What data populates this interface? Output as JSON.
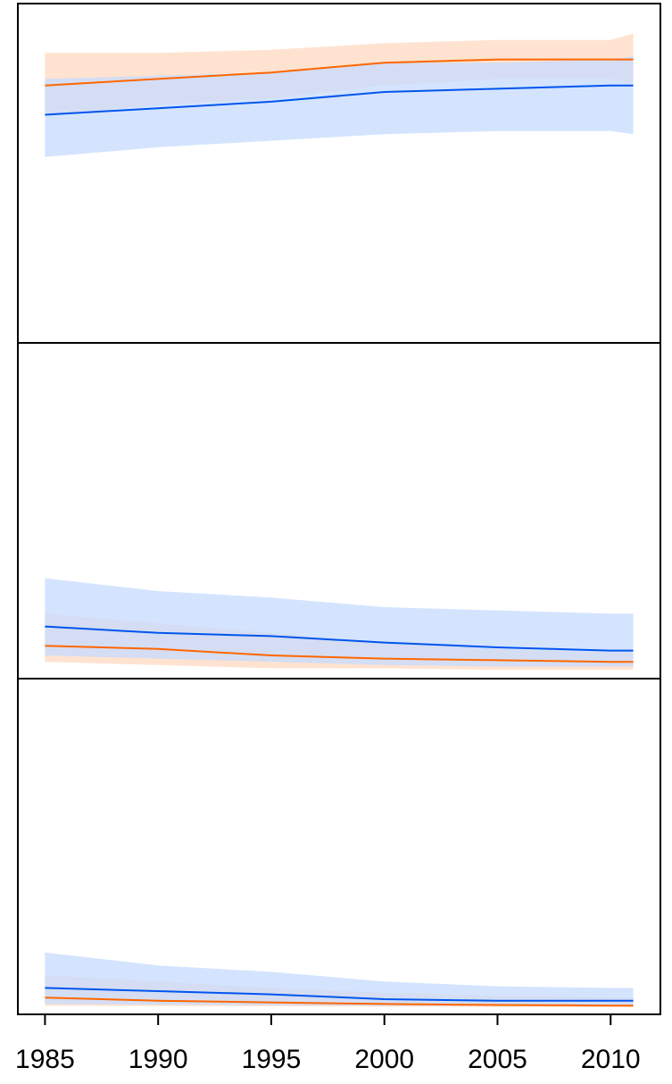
{
  "chart_data": [
    {
      "type": "area",
      "panel": "top",
      "x": [
        1985,
        1990,
        1995,
        2000,
        2005,
        2010,
        2011
      ],
      "ylim": [
        0,
        1
      ],
      "series": [
        {
          "color": "#ff6600",
          "band_color": "#ffd9c0",
          "values": [
            0.77,
            0.79,
            0.81,
            0.84,
            0.85,
            0.85,
            0.85
          ],
          "upper": [
            0.87,
            0.87,
            0.88,
            0.9,
            0.91,
            0.91,
            0.93
          ],
          "lower": [
            0.68,
            0.71,
            0.73,
            0.77,
            0.79,
            0.79,
            0.78
          ]
        },
        {
          "color": "#0055ee",
          "band_color": "#c6dbff",
          "values": [
            0.68,
            0.7,
            0.72,
            0.75,
            0.76,
            0.77,
            0.77
          ],
          "upper": [
            0.79,
            0.8,
            0.81,
            0.84,
            0.84,
            0.85,
            0.86
          ],
          "lower": [
            0.55,
            0.58,
            0.6,
            0.62,
            0.63,
            0.63,
            0.62
          ]
        }
      ]
    },
    {
      "type": "area",
      "panel": "middle",
      "x": [
        1985,
        1990,
        1995,
        2000,
        2005,
        2010,
        2011
      ],
      "ylim": [
        0,
        1
      ],
      "series": [
        {
          "color": "#ff6600",
          "band_color": "#ffd9c0",
          "values": [
            0.08,
            0.07,
            0.05,
            0.04,
            0.035,
            0.03,
            0.03
          ],
          "upper": [
            0.18,
            0.15,
            0.12,
            0.09,
            0.07,
            0.06,
            0.06
          ],
          "lower": [
            0.03,
            0.02,
            0.01,
            0.01,
            0.005,
            0.005,
            0.005
          ]
        },
        {
          "color": "#0055ee",
          "band_color": "#c6dbff",
          "values": [
            0.14,
            0.12,
            0.11,
            0.09,
            0.075,
            0.065,
            0.065
          ],
          "upper": [
            0.29,
            0.25,
            0.23,
            0.2,
            0.19,
            0.18,
            0.18
          ],
          "lower": [
            0.05,
            0.04,
            0.03,
            0.02,
            0.015,
            0.015,
            0.015
          ]
        }
      ]
    },
    {
      "type": "area",
      "panel": "bottom",
      "x": [
        1985,
        1990,
        1995,
        2000,
        2005,
        2010,
        2011
      ],
      "ylim": [
        0,
        1
      ],
      "x_tick_labels": [
        "1985",
        "1990",
        "1995",
        "2000",
        "2005",
        "2010"
      ],
      "series": [
        {
          "color": "#ff6600",
          "band_color": "#ffd9c0",
          "values": [
            0.03,
            0.02,
            0.015,
            0.01,
            0.007,
            0.005,
            0.005
          ],
          "upper": [
            0.1,
            0.08,
            0.06,
            0.045,
            0.035,
            0.03,
            0.03
          ],
          "lower": [
            0.005,
            0.004,
            0.003,
            0.002,
            0.001,
            0.001,
            0.001
          ]
        },
        {
          "color": "#0055ee",
          "band_color": "#c6dbff",
          "values": [
            0.06,
            0.05,
            0.04,
            0.025,
            0.02,
            0.02,
            0.02
          ],
          "upper": [
            0.17,
            0.13,
            0.11,
            0.08,
            0.065,
            0.06,
            0.06
          ],
          "lower": [
            0.01,
            0.008,
            0.006,
            0.005,
            0.004,
            0.004,
            0.004
          ]
        }
      ]
    }
  ]
}
